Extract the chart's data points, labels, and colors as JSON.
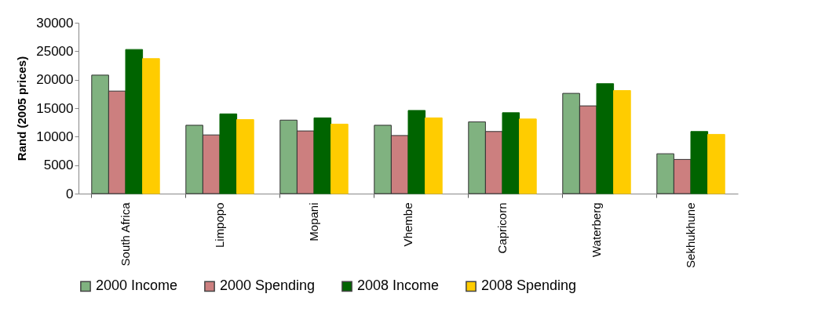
{
  "chart_data": {
    "type": "bar",
    "ylabel": "Rand (2005 prices)",
    "categories": [
      "South Africa",
      "Limpopo",
      "Mopani",
      "Vhembe",
      "Capricorn",
      "Waterberg",
      "Sekhukhune"
    ],
    "series": [
      {
        "name": "2000 Income",
        "color": "#80b280",
        "values": [
          20800,
          12000,
          12900,
          12000,
          12600,
          17600,
          7000
        ]
      },
      {
        "name": "2000 Spending",
        "color": "#cc7f7f",
        "values": [
          18000,
          10300,
          11000,
          10200,
          10900,
          15400,
          6000
        ]
      },
      {
        "name": "2008 Income",
        "color": "#006400",
        "values": [
          25300,
          14000,
          13300,
          14600,
          14200,
          19300,
          10900
        ]
      },
      {
        "name": "2008 Spending",
        "color": "#ffcc00",
        "values": [
          23700,
          13000,
          12200,
          13300,
          13100,
          18100,
          10400
        ]
      }
    ],
    "ylim": [
      0,
      30000
    ],
    "yticks": [
      0,
      5000,
      10000,
      15000,
      20000,
      25000,
      30000
    ],
    "grid": false,
    "legend": "bottom"
  }
}
